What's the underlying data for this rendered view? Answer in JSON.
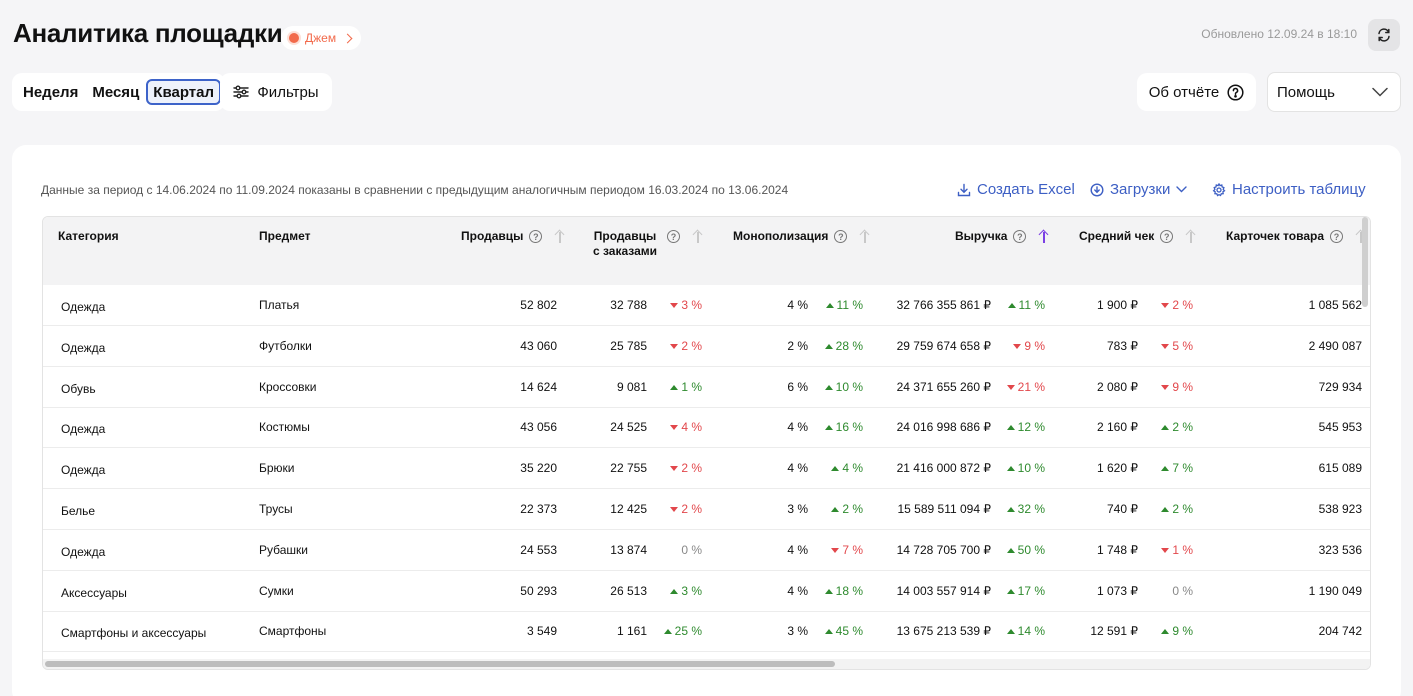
{
  "header": {
    "title": "Аналитика площадки",
    "store_label": "Джем",
    "updated_text": "Обновлено 12.09.24 в 18:10"
  },
  "toolbar": {
    "periods": [
      "Неделя",
      "Месяц",
      "Квартал"
    ],
    "active_period": "Квартал",
    "filters_label": "Фильтры",
    "report_label": "Об отчёте",
    "help_label": "Помощь"
  },
  "table_card": {
    "period_note": "Данные за период с 14.06.2024 по 11.09.2024 показаны в сравнении с предыдущим аналогичным периодом 16.03.2024 по 13.06.2024",
    "create_excel": "Создать Excel",
    "downloads": "Загрузки",
    "configure": "Настроить таблицу"
  },
  "columns": {
    "category": "Категория",
    "subject": "Предмет",
    "sellers": "Продавцы",
    "sellers_with_orders": "Продавцы с заказами",
    "monopolization": "Монополизация",
    "revenue": "Выручка",
    "avg_check": "Средний чек",
    "product_cards": "Карточек товара"
  },
  "rows": [
    {
      "category": "Одежда",
      "subject": "Платья",
      "sellers": "52 802",
      "swo": "32 788",
      "swo_chg": "3 %",
      "swo_dir": "down",
      "mono": "4 %",
      "mono_chg": "11 %",
      "mono_dir": "up",
      "revenue": "32 766 355 861 ₽",
      "rev_chg": "11 %",
      "rev_dir": "up",
      "check": "1 900 ₽",
      "check_chg": "2 %",
      "check_dir": "down",
      "cards": "1 085 562"
    },
    {
      "category": "Одежда",
      "subject": "Футболки",
      "sellers": "43 060",
      "swo": "25 785",
      "swo_chg": "2 %",
      "swo_dir": "down",
      "mono": "2 %",
      "mono_chg": "28 %",
      "mono_dir": "up",
      "revenue": "29 759 674 658 ₽",
      "rev_chg": "9 %",
      "rev_dir": "down",
      "check": "783 ₽",
      "check_chg": "5 %",
      "check_dir": "down",
      "cards": "2 490 087"
    },
    {
      "category": "Обувь",
      "subject": "Кроссовки",
      "sellers": "14 624",
      "swo": "9 081",
      "swo_chg": "1 %",
      "swo_dir": "up",
      "mono": "6 %",
      "mono_chg": "10 %",
      "mono_dir": "up",
      "revenue": "24 371 655 260 ₽",
      "rev_chg": "21 %",
      "rev_dir": "down",
      "check": "2 080 ₽",
      "check_chg": "9 %",
      "check_dir": "down",
      "cards": "729 934"
    },
    {
      "category": "Одежда",
      "subject": "Костюмы",
      "sellers": "43 056",
      "swo": "24 525",
      "swo_chg": "4 %",
      "swo_dir": "down",
      "mono": "4 %",
      "mono_chg": "16 %",
      "mono_dir": "up",
      "revenue": "24 016 998 686 ₽",
      "rev_chg": "12 %",
      "rev_dir": "up",
      "check": "2 160 ₽",
      "check_chg": "2 %",
      "check_dir": "up",
      "cards": "545 953"
    },
    {
      "category": "Одежда",
      "subject": "Брюки",
      "sellers": "35 220",
      "swo": "22 755",
      "swo_chg": "2 %",
      "swo_dir": "down",
      "mono": "4 %",
      "mono_chg": "4 %",
      "mono_dir": "up",
      "revenue": "21 416 000 872 ₽",
      "rev_chg": "10 %",
      "rev_dir": "up",
      "check": "1 620 ₽",
      "check_chg": "7 %",
      "check_dir": "up",
      "cards": "615 089"
    },
    {
      "category": "Белье",
      "subject": "Трусы",
      "sellers": "22 373",
      "swo": "12 425",
      "swo_chg": "2 %",
      "swo_dir": "down",
      "mono": "3 %",
      "mono_chg": "2 %",
      "mono_dir": "up",
      "revenue": "15 589 511 094 ₽",
      "rev_chg": "32 %",
      "rev_dir": "up",
      "check": "740 ₽",
      "check_chg": "2 %",
      "check_dir": "up",
      "cards": "538 923"
    },
    {
      "category": "Одежда",
      "subject": "Рубашки",
      "sellers": "24 553",
      "swo": "13 874",
      "swo_chg": "0 %",
      "swo_dir": "flat",
      "mono": "4 %",
      "mono_chg": "7 %",
      "mono_dir": "down",
      "revenue": "14 728 705 700 ₽",
      "rev_chg": "50 %",
      "rev_dir": "up",
      "check": "1 748 ₽",
      "check_chg": "1 %",
      "check_dir": "down",
      "cards": "323 536"
    },
    {
      "category": "Аксессуары",
      "subject": "Сумки",
      "sellers": "50 293",
      "swo": "26 513",
      "swo_chg": "3 %",
      "swo_dir": "up",
      "mono": "4 %",
      "mono_chg": "18 %",
      "mono_dir": "up",
      "revenue": "14 003 557 914 ₽",
      "rev_chg": "17 %",
      "rev_dir": "up",
      "check": "1 073 ₽",
      "check_chg": "0 %",
      "check_dir": "flat",
      "cards": "1 190 049"
    },
    {
      "category": "Смартфоны и аксессуары",
      "subject": "Смартфоны",
      "sellers": "3 549",
      "swo": "1 161",
      "swo_chg": "25 %",
      "swo_dir": "up",
      "mono": "3 %",
      "mono_chg": "45 %",
      "mono_dir": "up",
      "revenue": "13 675 213 539 ₽",
      "rev_chg": "14 %",
      "rev_dir": "up",
      "check": "12 591 ₽",
      "check_chg": "9 %",
      "check_dir": "up",
      "cards": "204 742"
    }
  ],
  "colors": {
    "accent": "#3d5fc4",
    "store": "#f26a4b",
    "positive": "#2e8a2e",
    "negative": "#e2474b",
    "sort_active": "#7b3fe4"
  }
}
